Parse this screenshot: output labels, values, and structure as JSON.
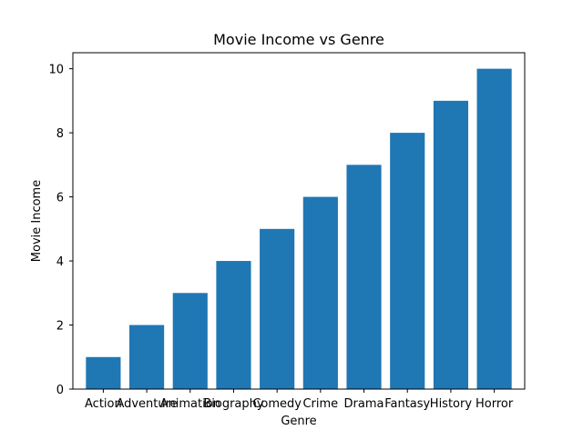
{
  "chart_data": {
    "type": "bar",
    "title": "Movie Income vs Genre",
    "xlabel": "Genre",
    "ylabel": "Movie Income",
    "categories": [
      "Action",
      "Adventure",
      "Animation",
      "Biography",
      "Comedy",
      "Crime",
      "Drama",
      "Fantasy",
      "History",
      "Horror"
    ],
    "values": [
      1,
      2,
      3,
      4,
      5,
      6,
      7,
      8,
      9,
      10
    ],
    "ylim": [
      0,
      10.5
    ],
    "yticks": [
      0,
      2,
      4,
      6,
      8,
      10
    ],
    "grid": false,
    "bar_color": "#1f77b4"
  }
}
